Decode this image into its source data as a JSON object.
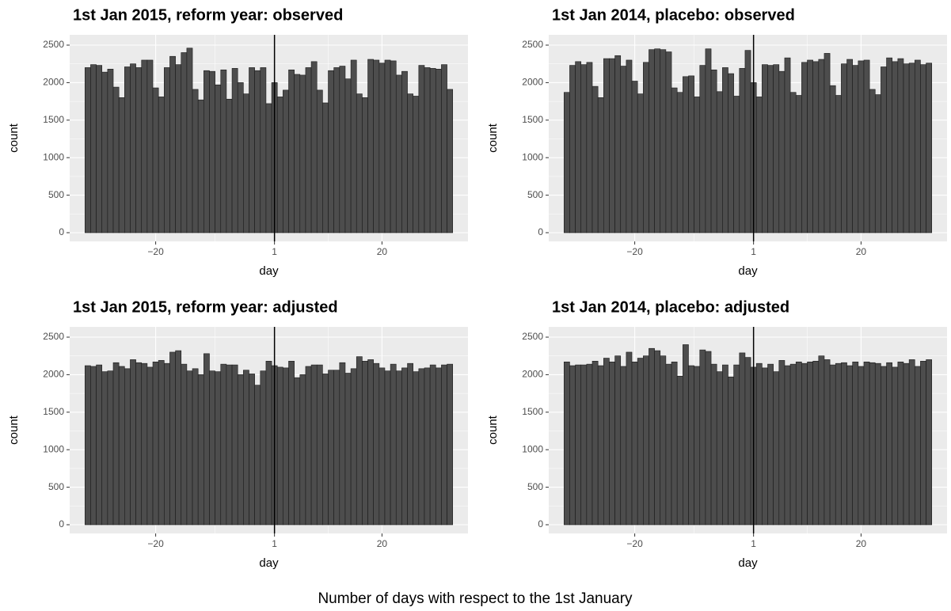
{
  "chart_data": [
    {
      "type": "histogram",
      "title": "1st Jan 2015, reform year: observed",
      "x_label": "day",
      "y_label": "count",
      "color": "#4d4d4d",
      "grid": true,
      "vline": 1,
      "bins": [
        -32.5,
        -31.5,
        -30.5,
        -29.5,
        -28.5,
        -27.5,
        -26.5,
        -25.5,
        -24.5,
        -23.5,
        -22.5,
        -21.5,
        -20.5,
        -19.5,
        -18.5,
        -17.5,
        -16.5,
        -15.5,
        -14.5,
        -13.5,
        -12.5,
        -11.5,
        -10.5,
        -9.5,
        -8.5,
        -7.5,
        -6.5,
        -5.5,
        -4.5,
        -3.5,
        -2.5,
        -1.5,
        -0.5,
        0.5,
        1.5,
        2.5,
        3.5,
        4.5,
        5.5,
        6.5,
        7.5,
        8.5,
        9.5,
        10.5,
        11.5,
        12.5,
        13.5,
        14.5,
        15.5,
        16.5,
        17.5,
        18.5,
        19.5,
        20.5,
        21.5,
        22.5,
        23.5,
        24.5,
        25.5,
        26.5,
        27.5,
        28.5,
        29.5,
        30.5,
        31.5,
        32.5
      ],
      "values": [
        2200,
        2240,
        2230,
        2140,
        2180,
        1940,
        1800,
        2210,
        2250,
        2200,
        2300,
        2300,
        1930,
        1810,
        2200,
        2350,
        2240,
        2400,
        2460,
        1910,
        1770,
        2160,
        2150,
        1970,
        2170,
        1780,
        2190,
        2000,
        1850,
        2200,
        2160,
        2200,
        1720,
        2000,
        1810,
        1900,
        2170,
        2110,
        2100,
        2200,
        2280,
        1900,
        1730,
        2160,
        2200,
        2220,
        2050,
        2300,
        1850,
        1800,
        2310,
        2300,
        2260,
        2300,
        2290,
        2100,
        2150,
        1850,
        1820,
        2230,
        2200,
        2190,
        2180,
        2240,
        1910
      ],
      "xlim": [
        -35.2,
        35.2
      ],
      "xticks": [
        {
          "value": -20,
          "label": "−20"
        },
        1,
        20
      ],
      "ylim": [
        -116,
        2637
      ],
      "yticks": [
        0,
        500,
        1000,
        1500,
        2000,
        2500
      ]
    },
    {
      "type": "histogram",
      "title": "1st Jan 2014, placebo: observed",
      "x_label": "day",
      "y_label": "count",
      "color": "#4d4d4d",
      "grid": true,
      "vline": 1,
      "bins": [
        -32.5,
        -31.5,
        -30.5,
        -29.5,
        -28.5,
        -27.5,
        -26.5,
        -25.5,
        -24.5,
        -23.5,
        -22.5,
        -21.5,
        -20.5,
        -19.5,
        -18.5,
        -17.5,
        -16.5,
        -15.5,
        -14.5,
        -13.5,
        -12.5,
        -11.5,
        -10.5,
        -9.5,
        -8.5,
        -7.5,
        -6.5,
        -5.5,
        -4.5,
        -3.5,
        -2.5,
        -1.5,
        -0.5,
        0.5,
        1.5,
        2.5,
        3.5,
        4.5,
        5.5,
        6.5,
        7.5,
        8.5,
        9.5,
        10.5,
        11.5,
        12.5,
        13.5,
        14.5,
        15.5,
        16.5,
        17.5,
        18.5,
        19.5,
        20.5,
        21.5,
        22.5,
        23.5,
        24.5,
        25.5,
        26.5,
        27.5,
        28.5,
        29.5,
        30.5,
        31.5,
        32.5
      ],
      "values": [
        1870,
        2230,
        2280,
        2240,
        2270,
        1950,
        1800,
        2320,
        2320,
        2360,
        2220,
        2300,
        2020,
        1850,
        2270,
        2440,
        2450,
        2440,
        2410,
        1930,
        1870,
        2080,
        2090,
        1810,
        2230,
        2450,
        2170,
        1880,
        2200,
        2120,
        1820,
        2190,
        2430,
        2000,
        1810,
        2240,
        2230,
        2240,
        2150,
        2330,
        1870,
        1830,
        2270,
        2300,
        2280,
        2310,
        2390,
        1960,
        1830,
        2250,
        2310,
        2230,
        2290,
        2300,
        1910,
        1840,
        2210,
        2330,
        2280,
        2320,
        2250,
        2260,
        2300,
        2240,
        2260
      ],
      "xlim": [
        -35.2,
        35.2
      ],
      "xticks": [
        {
          "value": -20,
          "label": "−20"
        },
        1,
        20
      ],
      "ylim": [
        -116,
        2637
      ],
      "yticks": [
        0,
        500,
        1000,
        1500,
        2000,
        2500
      ]
    },
    {
      "type": "histogram",
      "title": "1st Jan 2015, reform year: adjusted",
      "x_label": "day",
      "y_label": "count",
      "color": "#4d4d4d",
      "grid": true,
      "vline": 1,
      "bins": [
        -32.5,
        -31.5,
        -30.5,
        -29.5,
        -28.5,
        -27.5,
        -26.5,
        -25.5,
        -24.5,
        -23.5,
        -22.5,
        -21.5,
        -20.5,
        -19.5,
        -18.5,
        -17.5,
        -16.5,
        -15.5,
        -14.5,
        -13.5,
        -12.5,
        -11.5,
        -10.5,
        -9.5,
        -8.5,
        -7.5,
        -6.5,
        -5.5,
        -4.5,
        -3.5,
        -2.5,
        -1.5,
        -0.5,
        0.5,
        1.5,
        2.5,
        3.5,
        4.5,
        5.5,
        6.5,
        7.5,
        8.5,
        9.5,
        10.5,
        11.5,
        12.5,
        13.5,
        14.5,
        15.5,
        16.5,
        17.5,
        18.5,
        19.5,
        20.5,
        21.5,
        22.5,
        23.5,
        24.5,
        25.5,
        26.5,
        27.5,
        28.5,
        29.5,
        30.5,
        31.5,
        32.5
      ],
      "values": [
        2120,
        2110,
        2130,
        2040,
        2050,
        2160,
        2110,
        2080,
        2200,
        2160,
        2150,
        2100,
        2170,
        2190,
        2150,
        2300,
        2320,
        2140,
        2050,
        2080,
        2000,
        2280,
        2050,
        2040,
        2140,
        2130,
        2130,
        2000,
        2060,
        2010,
        1860,
        2050,
        2180,
        2120,
        2100,
        2090,
        2180,
        1960,
        2000,
        2110,
        2130,
        2130,
        2010,
        2060,
        2060,
        2160,
        2020,
        2080,
        2240,
        2180,
        2200,
        2150,
        2090,
        2050,
        2140,
        2050,
        2090,
        2150,
        2040,
        2080,
        2090,
        2130,
        2090,
        2130,
        2140
      ],
      "xlim": [
        -35.2,
        35.2
      ],
      "xticks": [
        {
          "value": -20,
          "label": "−20"
        },
        1,
        20
      ],
      "ylim": [
        -116,
        2637
      ],
      "yticks": [
        0,
        500,
        1000,
        1500,
        2000,
        2500
      ]
    },
    {
      "type": "histogram",
      "title": "1st Jan 2014, placebo:  adjusted",
      "x_label": "day",
      "y_label": "count",
      "color": "#4d4d4d",
      "grid": true,
      "vline": 1,
      "bins": [
        -32.5,
        -31.5,
        -30.5,
        -29.5,
        -28.5,
        -27.5,
        -26.5,
        -25.5,
        -24.5,
        -23.5,
        -22.5,
        -21.5,
        -20.5,
        -19.5,
        -18.5,
        -17.5,
        -16.5,
        -15.5,
        -14.5,
        -13.5,
        -12.5,
        -11.5,
        -10.5,
        -9.5,
        -8.5,
        -7.5,
        -6.5,
        -5.5,
        -4.5,
        -3.5,
        -2.5,
        -1.5,
        -0.5,
        0.5,
        1.5,
        2.5,
        3.5,
        4.5,
        5.5,
        6.5,
        7.5,
        8.5,
        9.5,
        10.5,
        11.5,
        12.5,
        13.5,
        14.5,
        15.5,
        16.5,
        17.5,
        18.5,
        19.5,
        20.5,
        21.5,
        22.5,
        23.5,
        24.5,
        25.5,
        26.5,
        27.5,
        28.5,
        29.5,
        30.5,
        31.5,
        32.5
      ],
      "values": [
        2170,
        2120,
        2130,
        2130,
        2140,
        2180,
        2120,
        2220,
        2170,
        2250,
        2110,
        2300,
        2170,
        2220,
        2250,
        2350,
        2320,
        2250,
        2140,
        2170,
        1980,
        2400,
        2120,
        2110,
        2330,
        2310,
        2140,
        2040,
        2130,
        1970,
        2130,
        2290,
        2230,
        2100,
        2150,
        2090,
        2140,
        2040,
        2190,
        2120,
        2140,
        2170,
        2150,
        2170,
        2180,
        2250,
        2200,
        2130,
        2150,
        2160,
        2120,
        2170,
        2110,
        2170,
        2160,
        2150,
        2110,
        2160,
        2100,
        2170,
        2150,
        2200,
        2110,
        2180,
        2200
      ],
      "xlim": [
        -35.2,
        35.2
      ],
      "xticks": [
        {
          "value": -20,
          "label": "−20"
        },
        1,
        20
      ],
      "ylim": [
        -116,
        2637
      ],
      "yticks": [
        0,
        500,
        1000,
        1500,
        2000,
        2500
      ]
    }
  ],
  "caption": "Number of days with respect to the 1st January"
}
